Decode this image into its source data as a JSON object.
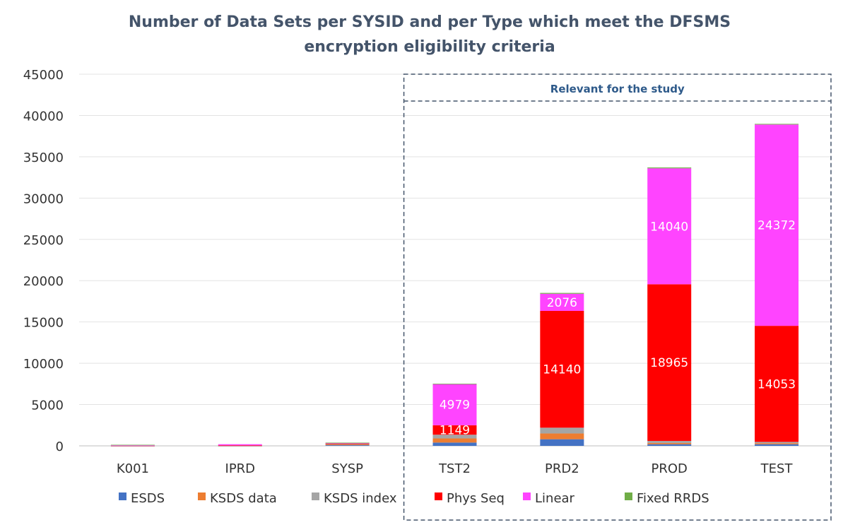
{
  "chart_data": {
    "type": "bar",
    "stacked": true,
    "title_lines": [
      "Number of Data Sets per SYSID and per Type which meet the DFSMS",
      "encryption eligibility criteria"
    ],
    "categories": [
      "K001",
      "IPRD",
      "SYSP",
      "TST2",
      "PRD2",
      "PROD",
      "TEST"
    ],
    "ylim": [
      0,
      45000
    ],
    "yticks": [
      0,
      5000,
      10000,
      15000,
      20000,
      25000,
      30000,
      35000,
      40000,
      45000
    ],
    "grid": true,
    "legend_position": "bottom",
    "series": [
      {
        "name": "ESDS",
        "color": "#4472c4",
        "values": [
          10,
          10,
          80,
          400,
          800,
          200,
          200
        ]
      },
      {
        "name": "KSDS data",
        "color": "#ed7d31",
        "values": [
          10,
          10,
          80,
          500,
          700,
          150,
          130
        ]
      },
      {
        "name": "KSDS index",
        "color": "#a5a5a5",
        "values": [
          10,
          10,
          80,
          450,
          700,
          250,
          150
        ]
      },
      {
        "name": "Phys Seq",
        "color": "#ff0000",
        "values": [
          10,
          30,
          40,
          1149,
          14140,
          18965,
          14053
        ]
      },
      {
        "name": "Linear",
        "color": "#ff44ff",
        "values": [
          20,
          140,
          100,
          4979,
          2076,
          14040,
          24372
        ]
      },
      {
        "name": "Fixed RRDS",
        "color": "#70ad47",
        "values": [
          70,
          0,
          10,
          50,
          100,
          100,
          80
        ]
      }
    ],
    "data_labels": [
      {
        "series": "Phys Seq",
        "category": "TST2",
        "text": "1149"
      },
      {
        "series": "Linear",
        "category": "TST2",
        "text": "4979"
      },
      {
        "series": "Phys Seq",
        "category": "PRD2",
        "text": "14140"
      },
      {
        "series": "Linear",
        "category": "PRD2",
        "text": "2076"
      },
      {
        "series": "Phys Seq",
        "category": "PROD",
        "text": "18965"
      },
      {
        "series": "Linear",
        "category": "PROD",
        "text": "14040"
      },
      {
        "series": "Phys Seq",
        "category": "TEST",
        "text": "14053"
      },
      {
        "series": "Linear",
        "category": "TEST",
        "text": "24372"
      }
    ],
    "annotation": {
      "text": "Relevant for the study",
      "categories": [
        "TST2",
        "PRD2",
        "PROD",
        "TEST"
      ]
    }
  }
}
